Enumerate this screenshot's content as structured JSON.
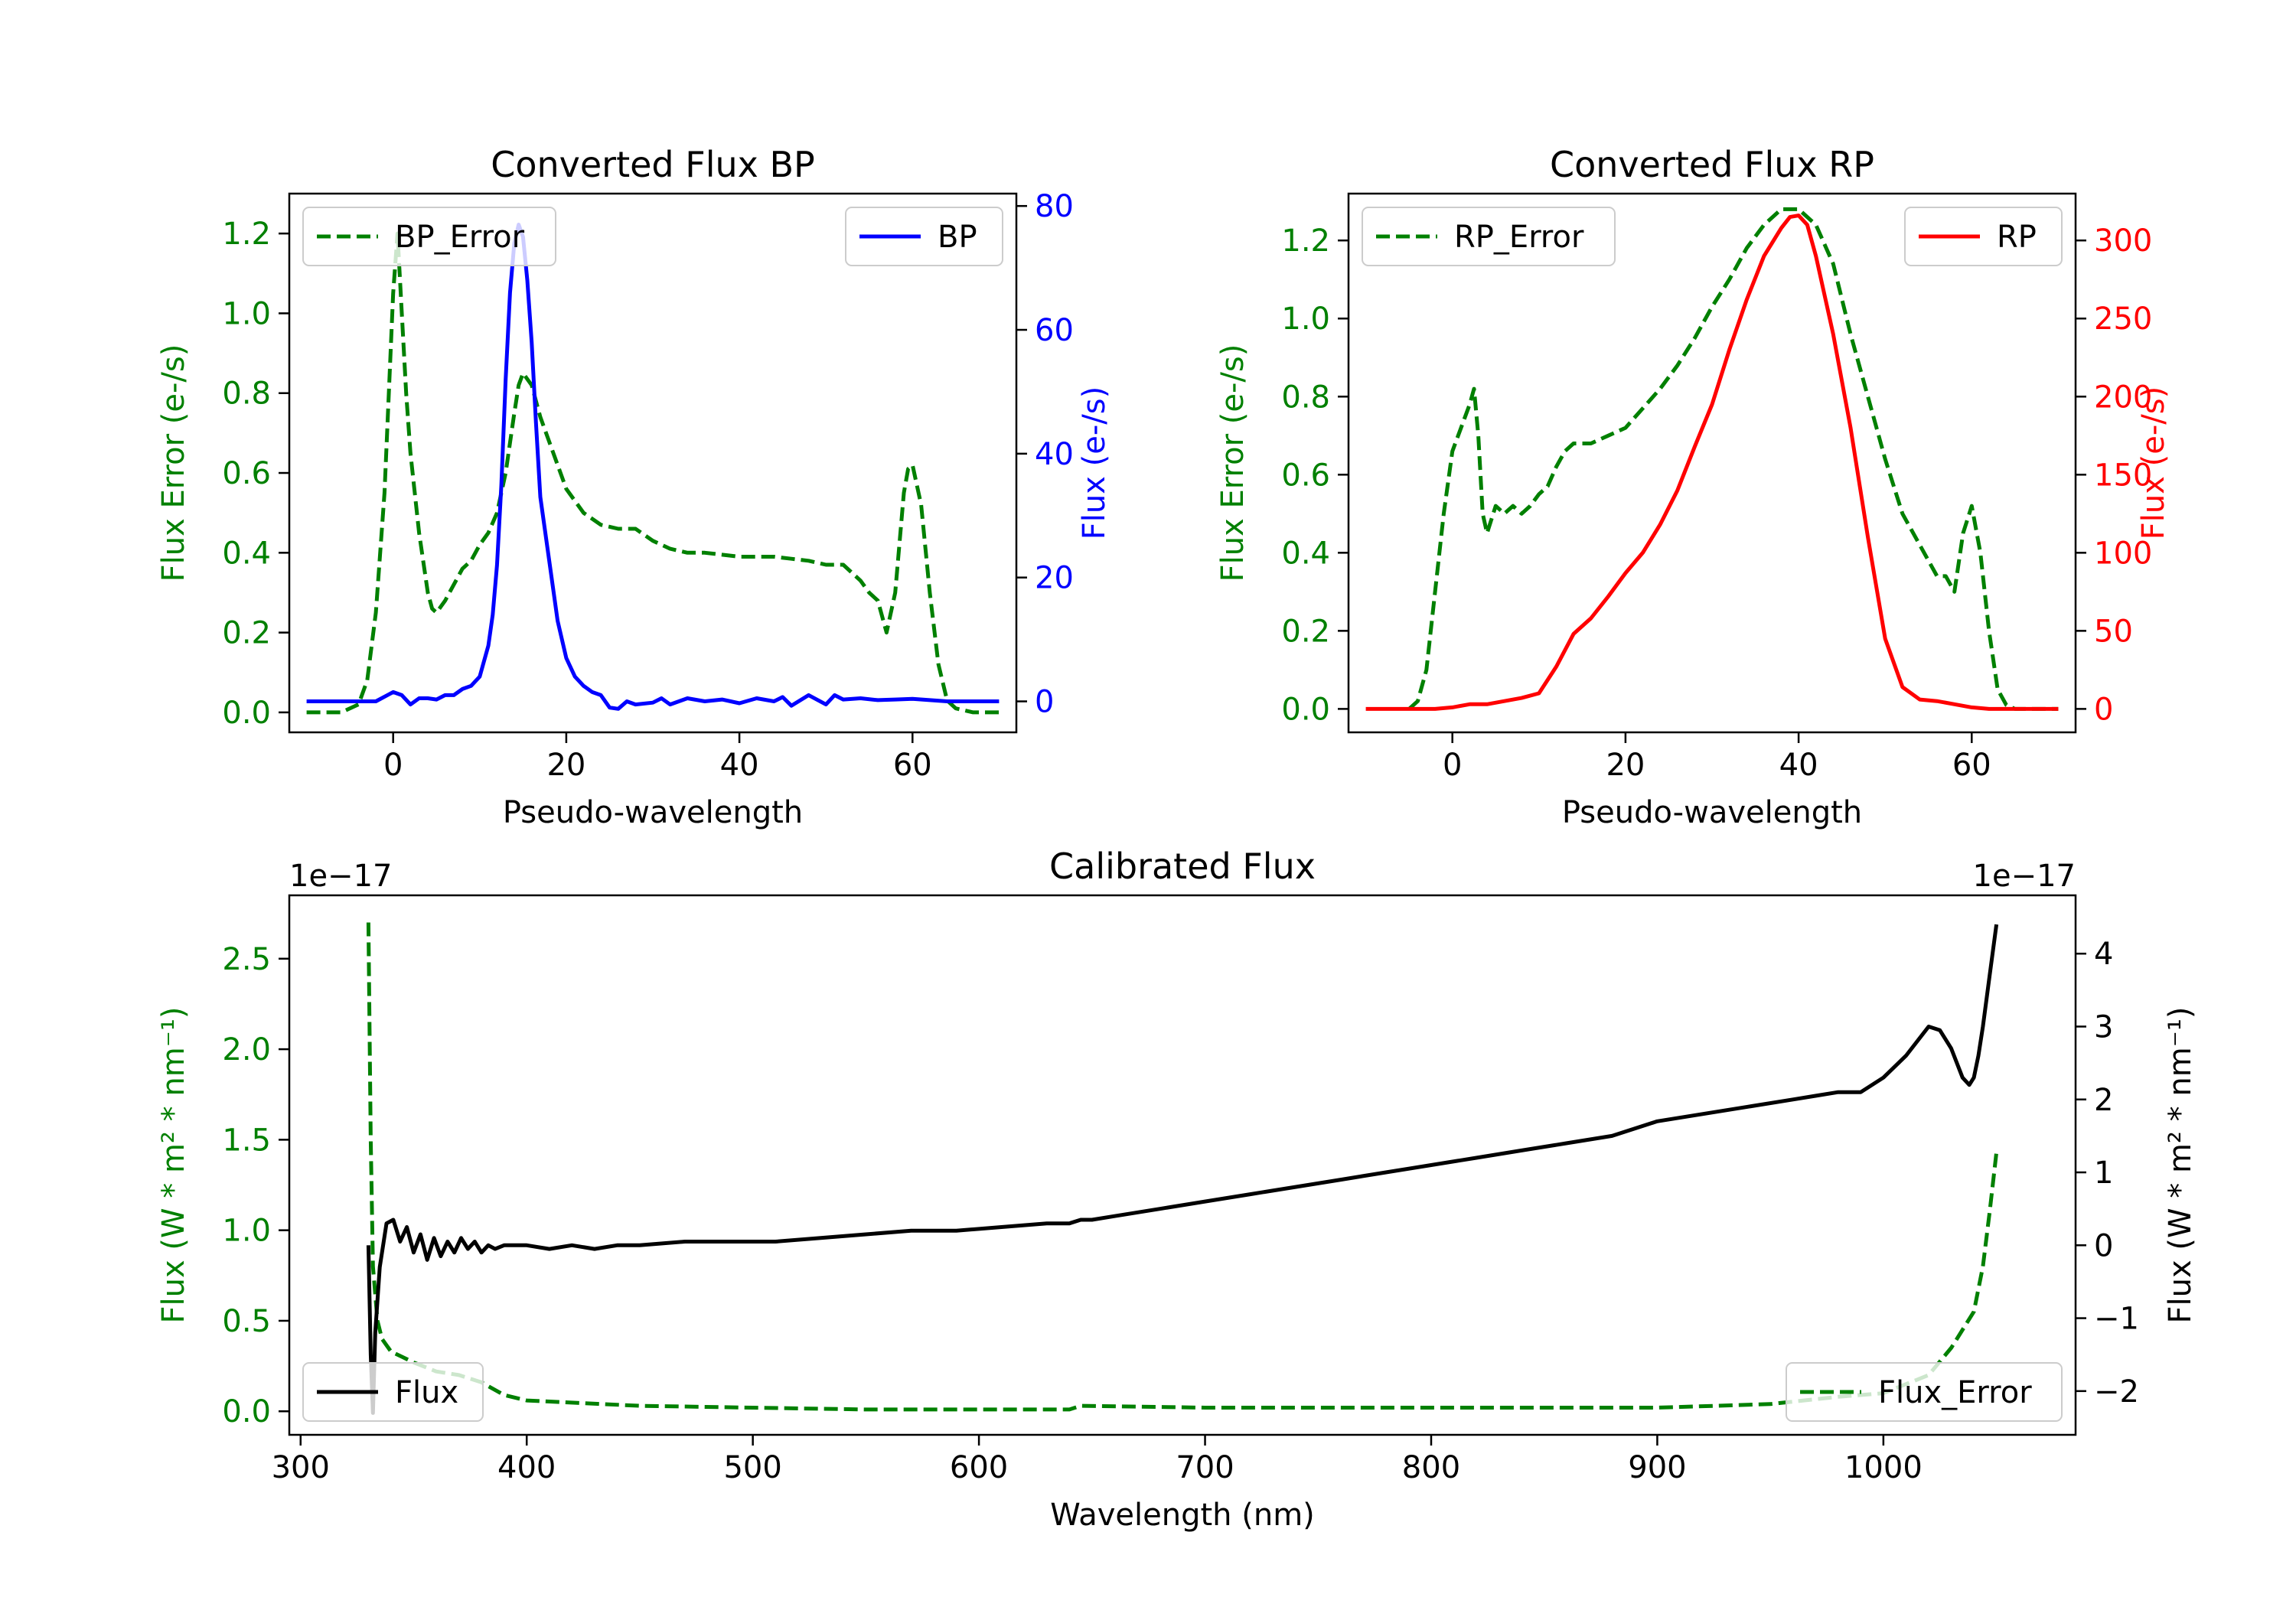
{
  "chart_data": [
    {
      "type": "line",
      "title": "Converted Flux BP",
      "xlabel": "Pseudo-wavelength",
      "xlim": [
        -12,
        72
      ],
      "xticks": [
        0,
        20,
        40,
        60
      ],
      "left_axis": {
        "label": "Flux Error (e-/s)",
        "color": "#008000",
        "ylim": [
          -0.05,
          1.3
        ],
        "ticks": [
          0.0,
          0.2,
          0.4,
          0.6,
          0.8,
          1.0,
          1.2
        ],
        "tick_labels": [
          "0.0",
          "0.2",
          "0.4",
          "0.6",
          "0.8",
          "1.0",
          "1.2"
        ]
      },
      "right_axis": {
        "label": "Flux (e-/s)",
        "color": "#0000ff",
        "ylim": [
          -5,
          82
        ],
        "ticks": [
          0,
          20,
          40,
          60,
          80
        ],
        "tick_labels": [
          "0",
          "20",
          "40",
          "60",
          "80"
        ]
      },
      "series": [
        {
          "name": "BP_Error",
          "axis": "left",
          "color": "#008000",
          "style": "dashed",
          "x": [
            -10,
            -6,
            -4,
            -3,
            -2,
            -1,
            0,
            0.5,
            1,
            1.5,
            2,
            3,
            4,
            4.5,
            5,
            6,
            7,
            8,
            9,
            10,
            11,
            12,
            13,
            14,
            14.5,
            15,
            16,
            17,
            18,
            19,
            20,
            22,
            24,
            26,
            28,
            30,
            32,
            34,
            36,
            38,
            40,
            42,
            44,
            46,
            48,
            50,
            52,
            54,
            55,
            56,
            57,
            58,
            59,
            59.5,
            60,
            61,
            62,
            63,
            64,
            65,
            67,
            70
          ],
          "values": [
            0,
            0,
            0.02,
            0.08,
            0.25,
            0.55,
            1.05,
            1.2,
            1.0,
            0.8,
            0.65,
            0.45,
            0.3,
            0.26,
            0.25,
            0.28,
            0.32,
            0.36,
            0.38,
            0.42,
            0.45,
            0.5,
            0.6,
            0.75,
            0.82,
            0.85,
            0.82,
            0.74,
            0.68,
            0.62,
            0.56,
            0.5,
            0.47,
            0.46,
            0.46,
            0.43,
            0.41,
            0.4,
            0.4,
            0.395,
            0.39,
            0.39,
            0.39,
            0.385,
            0.38,
            0.37,
            0.37,
            0.33,
            0.3,
            0.28,
            0.2,
            0.3,
            0.55,
            0.61,
            0.62,
            0.52,
            0.3,
            0.12,
            0.03,
            0.01,
            0,
            0
          ]
        },
        {
          "name": "BP",
          "axis": "right",
          "color": "#0000ff",
          "style": "solid",
          "x": [
            -10,
            -4,
            -2,
            0,
            1,
            2,
            3,
            4,
            5,
            6,
            7,
            8,
            9,
            10,
            11,
            11.5,
            12,
            12.5,
            13,
            13.5,
            14,
            14.5,
            15,
            15.5,
            16,
            16.5,
            17,
            18,
            19,
            20,
            21,
            22,
            23,
            24,
            25,
            26,
            27,
            28,
            30,
            31,
            32,
            34,
            36,
            38,
            40,
            42,
            44,
            45,
            46,
            48,
            50,
            51,
            52,
            54,
            56,
            58,
            60,
            62,
            64,
            70
          ],
          "values": [
            0,
            0,
            0,
            1.5,
            1,
            -0.5,
            0.5,
            0.5,
            0.3,
            1,
            1,
            2,
            2.5,
            4,
            9,
            14,
            22,
            35,
            52,
            66,
            74,
            77,
            75,
            68,
            58,
            45,
            33,
            23,
            13,
            7,
            4,
            2.5,
            1.5,
            1,
            -1,
            -1.2,
            0,
            -0.5,
            -0.2,
            0.5,
            -0.5,
            0.5,
            0,
            0.3,
            -0.3,
            0.5,
            0,
            0.7,
            -0.7,
            1,
            -0.5,
            1,
            0.3,
            0.5,
            0.2,
            0.3,
            0.4,
            0.2,
            0,
            0
          ]
        }
      ],
      "legend": [
        {
          "label": "BP_Error",
          "location": "upper-left"
        },
        {
          "label": "BP",
          "location": "upper-right"
        }
      ]
    },
    {
      "type": "line",
      "title": "Converted Flux RP",
      "xlabel": "Pseudo-wavelength",
      "xlim": [
        -12,
        72
      ],
      "xticks": [
        0,
        20,
        40,
        60
      ],
      "left_axis": {
        "label": "Flux Error (e-/s)",
        "color": "#008000",
        "ylim": [
          -0.06,
          1.32
        ],
        "ticks": [
          0.0,
          0.2,
          0.4,
          0.6,
          0.8,
          1.0,
          1.2
        ],
        "tick_labels": [
          "0.0",
          "0.2",
          "0.4",
          "0.6",
          "0.8",
          "1.0",
          "1.2"
        ]
      },
      "right_axis": {
        "label": "Flux (e-/s)",
        "color": "#ff0000",
        "ylim": [
          -15,
          330
        ],
        "ticks": [
          0,
          50,
          100,
          150,
          200,
          250,
          300
        ],
        "tick_labels": [
          "0",
          "50",
          "100",
          "150",
          "200",
          "250",
          "300"
        ]
      },
      "series": [
        {
          "name": "RP_Error",
          "axis": "left",
          "color": "#008000",
          "style": "dashed",
          "x": [
            -5,
            -4,
            -3,
            -2,
            -1,
            0,
            1,
            2,
            2.5,
            3,
            3.5,
            4,
            5,
            6,
            7,
            8,
            9,
            10,
            11,
            12,
            13,
            14,
            16,
            18,
            20,
            22,
            24,
            26,
            28,
            30,
            32,
            34,
            36,
            38,
            40,
            42,
            44,
            46,
            48,
            50,
            52,
            54,
            55,
            56,
            57,
            58,
            59,
            60,
            61,
            62,
            63,
            64,
            65,
            67,
            70
          ],
          "values": [
            0,
            0.02,
            0.1,
            0.3,
            0.5,
            0.66,
            0.72,
            0.78,
            0.82,
            0.7,
            0.5,
            0.45,
            0.52,
            0.5,
            0.52,
            0.5,
            0.52,
            0.55,
            0.57,
            0.62,
            0.66,
            0.68,
            0.68,
            0.7,
            0.72,
            0.77,
            0.82,
            0.88,
            0.95,
            1.03,
            1.1,
            1.18,
            1.24,
            1.28,
            1.28,
            1.24,
            1.14,
            0.96,
            0.8,
            0.64,
            0.5,
            0.42,
            0.38,
            0.34,
            0.34,
            0.3,
            0.45,
            0.52,
            0.4,
            0.2,
            0.05,
            0.01,
            0,
            0,
            0
          ]
        },
        {
          "name": "RP",
          "axis": "right",
          "color": "#ff0000",
          "style": "solid",
          "x": [
            -10,
            -2,
            0,
            2,
            4,
            6,
            8,
            10,
            12,
            14,
            16,
            18,
            20,
            22,
            24,
            26,
            28,
            30,
            32,
            34,
            36,
            38,
            39,
            40,
            41,
            42,
            44,
            46,
            48,
            50,
            52,
            54,
            56,
            58,
            60,
            62,
            64,
            70
          ],
          "values": [
            0,
            0,
            1,
            3,
            3,
            5,
            7,
            10,
            27,
            48,
            58,
            72,
            87,
            100,
            118,
            140,
            168,
            195,
            230,
            262,
            290,
            308,
            315,
            316,
            310,
            290,
            240,
            180,
            110,
            45,
            14,
            6,
            5,
            3,
            1,
            0,
            0,
            0
          ]
        }
      ],
      "legend": [
        {
          "label": "RP_Error",
          "location": "upper-left"
        },
        {
          "label": "RP",
          "location": "upper-right"
        }
      ]
    },
    {
      "type": "line",
      "title": "Calibrated Flux",
      "xlabel": "Wavelength (nm)",
      "xlim": [
        295,
        1085
      ],
      "xticks": [
        300,
        400,
        500,
        600,
        700,
        800,
        900,
        1000
      ],
      "left_axis": {
        "label": "Flux (W * m² * nm⁻¹)",
        "color": "#008000",
        "offset_text": "1e−17",
        "ylim": [
          -0.13,
          2.85
        ],
        "ticks": [
          0.0,
          0.5,
          1.0,
          1.5,
          2.0,
          2.5
        ],
        "tick_labels": [
          "0.0",
          "0.5",
          "1.0",
          "1.5",
          "2.0",
          "2.5"
        ]
      },
      "right_axis": {
        "label": "Flux (W * m² * nm⁻¹)",
        "color": "#000000",
        "offset_text": "1e−17",
        "ylim": [
          -2.6,
          4.8
        ],
        "ticks": [
          -2,
          -1,
          0,
          1,
          2,
          3,
          4
        ],
        "tick_labels": [
          "−2",
          "−1",
          "0",
          "1",
          "2",
          "3",
          "4"
        ]
      },
      "series": [
        {
          "name": "Flux_Error",
          "axis": "left",
          "color": "#008000",
          "style": "dashed",
          "x": [
            330,
            331,
            332,
            334,
            336,
            340,
            345,
            350,
            360,
            370,
            380,
            390,
            400,
            450,
            500,
            550,
            600,
            640,
            645,
            700,
            800,
            900,
            950,
            980,
            1000,
            1020,
            1030,
            1040,
            1044,
            1047,
            1050
          ],
          "values": [
            2.7,
            1.5,
            0.8,
            0.5,
            0.4,
            0.33,
            0.3,
            0.27,
            0.22,
            0.2,
            0.16,
            0.09,
            0.06,
            0.03,
            0.02,
            0.01,
            0.01,
            0.01,
            0.03,
            0.02,
            0.02,
            0.02,
            0.04,
            0.08,
            0.1,
            0.2,
            0.35,
            0.55,
            0.8,
            1.1,
            1.43
          ]
        },
        {
          "name": "Flux",
          "axis": "right",
          "color": "#000000",
          "style": "solid",
          "x": [
            330,
            331,
            332,
            333,
            335,
            338,
            341,
            344,
            347,
            350,
            353,
            356,
            359,
            362,
            365,
            368,
            371,
            374,
            377,
            380,
            383,
            386,
            390,
            395,
            400,
            410,
            420,
            430,
            440,
            450,
            470,
            490,
            510,
            530,
            550,
            570,
            590,
            610,
            630,
            640,
            645,
            650,
            660,
            680,
            700,
            720,
            740,
            760,
            780,
            800,
            820,
            840,
            860,
            880,
            900,
            920,
            940,
            960,
            970,
            980,
            990,
            1000,
            1010,
            1020,
            1025,
            1030,
            1035,
            1038,
            1040,
            1042,
            1044,
            1047,
            1050
          ],
          "values": [
            0,
            -1.5,
            -2.3,
            -1.2,
            -0.3,
            0.3,
            0.35,
            0.05,
            0.25,
            -0.1,
            0.15,
            -0.2,
            0.1,
            -0.15,
            0.05,
            -0.1,
            0.1,
            -0.05,
            0.05,
            -0.1,
            0.0,
            -0.05,
            0.0,
            0.0,
            0.0,
            -0.05,
            0.0,
            -0.05,
            0.0,
            0.0,
            0.05,
            0.05,
            0.05,
            0.1,
            0.15,
            0.2,
            0.2,
            0.25,
            0.3,
            0.3,
            0.35,
            0.35,
            0.4,
            0.5,
            0.6,
            0.7,
            0.8,
            0.9,
            1.0,
            1.1,
            1.2,
            1.3,
            1.4,
            1.5,
            1.7,
            1.8,
            1.9,
            2.0,
            2.05,
            2.1,
            2.1,
            2.3,
            2.6,
            3.0,
            2.95,
            2.7,
            2.3,
            2.2,
            2.3,
            2.6,
            3.0,
            3.7,
            4.4
          ]
        }
      ],
      "legend": [
        {
          "label": "Flux",
          "location": "lower-left"
        },
        {
          "label": "Flux_Error",
          "location": "lower-right"
        }
      ]
    }
  ]
}
